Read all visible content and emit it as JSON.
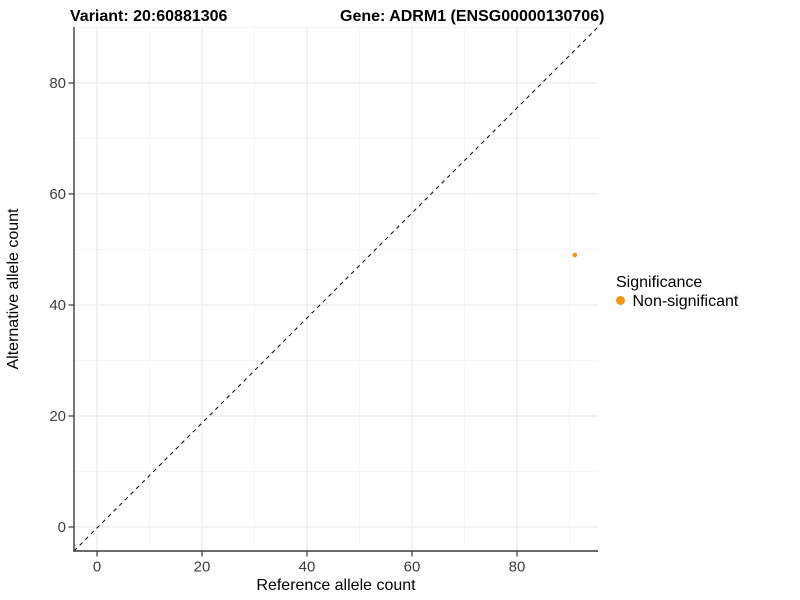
{
  "titles": {
    "variant": "Variant: 20:60881306",
    "gene": "Gene: ADRM1 (ENSG00000130706)"
  },
  "chart_data": {
    "type": "scatter",
    "xlabel": "Reference allele count",
    "ylabel": "Alternative allele count",
    "x_ticks": [
      0,
      20,
      40,
      60,
      80
    ],
    "y_ticks": [
      0,
      20,
      40,
      60,
      80
    ],
    "x_minor_breaks": [
      10,
      30,
      50,
      70,
      90
    ],
    "y_minor_breaks": [
      10,
      30,
      50,
      70,
      90
    ],
    "xlim": [
      -4.4,
      95.4
    ],
    "ylim": [
      -4.3,
      90.1
    ],
    "grid": true,
    "points": [
      {
        "x": 91,
        "y": 49,
        "significance": "Non-significant"
      }
    ],
    "abline": {
      "slope": 1,
      "intercept": 0,
      "style": "dashed"
    },
    "legend": {
      "title": "Significance",
      "position": "right",
      "items": [
        {
          "label": "Non-significant",
          "color": "#F5920E"
        }
      ]
    },
    "colors": {
      "point": "#F5920E",
      "grid_major": "#EBEBEB",
      "grid_minor": "#F5F5F5",
      "axis": "#3A3A3A",
      "tick_label": "#404040",
      "abline": "#111111"
    }
  }
}
